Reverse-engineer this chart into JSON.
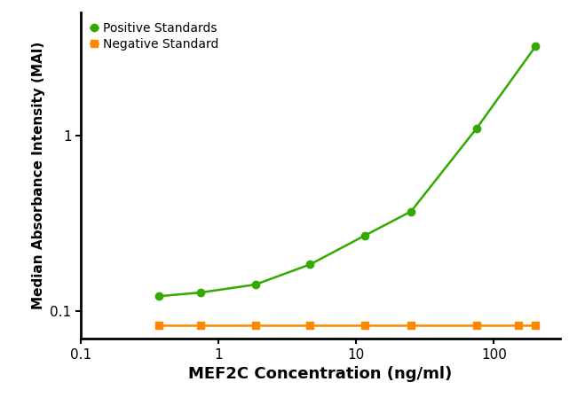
{
  "positive_x": [
    0.37,
    0.74,
    1.85,
    4.63,
    11.57,
    25.0,
    75.0,
    200.0
  ],
  "positive_y": [
    0.122,
    0.128,
    0.142,
    0.185,
    0.27,
    0.37,
    1.1,
    3.2
  ],
  "negative_x": [
    0.37,
    0.74,
    1.85,
    4.63,
    11.57,
    25.0,
    75.0,
    150.0,
    200.0
  ],
  "negative_y": [
    0.083,
    0.083,
    0.083,
    0.083,
    0.083,
    0.083,
    0.083,
    0.083,
    0.083
  ],
  "positive_color": "#33aa00",
  "negative_color": "#ff8800",
  "positive_label": "Positive Standards",
  "negative_label": "Negative Standard",
  "xlabel": "MEF2C Concentration (ng/ml)",
  "ylabel": "Median Absorbance Intensity (MAI)",
  "xlim": [
    0.1,
    300
  ],
  "ylim": [
    0.07,
    5.0
  ],
  "marker_size": 6,
  "line_width": 1.8,
  "background_color": "#ffffff",
  "xticks": [
    0.1,
    1,
    10,
    100
  ],
  "xtick_labels": [
    "0.1",
    "1",
    "10",
    "100"
  ],
  "yticks": [
    0.1,
    1
  ],
  "ytick_labels": [
    "0.1",
    "1"
  ],
  "xlabel_fontsize": 13,
  "ylabel_fontsize": 11,
  "tick_fontsize": 11,
  "legend_fontsize": 10
}
